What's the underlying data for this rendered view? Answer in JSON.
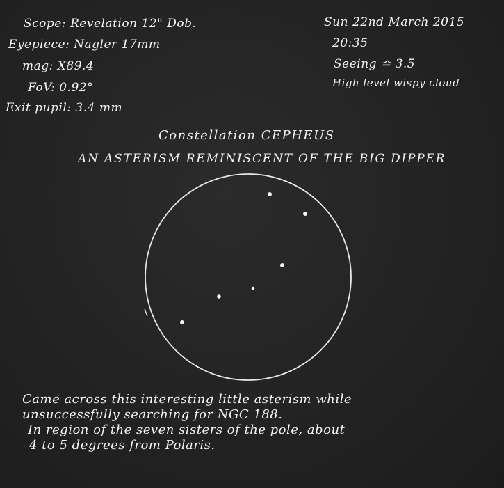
{
  "header_left": {
    "scope": "Scope: Revelation 12\" Dob.",
    "eyepiece": "Eyepiece: Nagler 17mm",
    "mag": "mag: X89.4",
    "fov": "FoV: 0.92°",
    "exit_pupil": "Exit pupil: 3.4 mm"
  },
  "header_right": {
    "date": "Sun 22nd March 2015",
    "time": "20:35",
    "seeing": "Seeing ≏ 3.5",
    "sky": "High level wispy cloud"
  },
  "title": {
    "constellation": "Constellation CEPHEUS",
    "subtitle": "AN ASTERISM REMINISCENT OF THE BIG DIPPER"
  },
  "eyepiece_field": {
    "stars": [
      {
        "name": "star-1"
      },
      {
        "name": "star-2"
      },
      {
        "name": "star-3"
      },
      {
        "name": "star-4"
      },
      {
        "name": "star-5"
      },
      {
        "name": "star-6"
      }
    ]
  },
  "notes": {
    "line1": "Came across this interesting little asterism while",
    "line2": "unsuccessfully searching for NGC 188.",
    "line3": "In region of the seven sisters of the pole, about",
    "line4": "4 to 5 degrees from Polaris."
  },
  "colors": {
    "paper": "#232323",
    "ink": "#f4f4f0"
  }
}
